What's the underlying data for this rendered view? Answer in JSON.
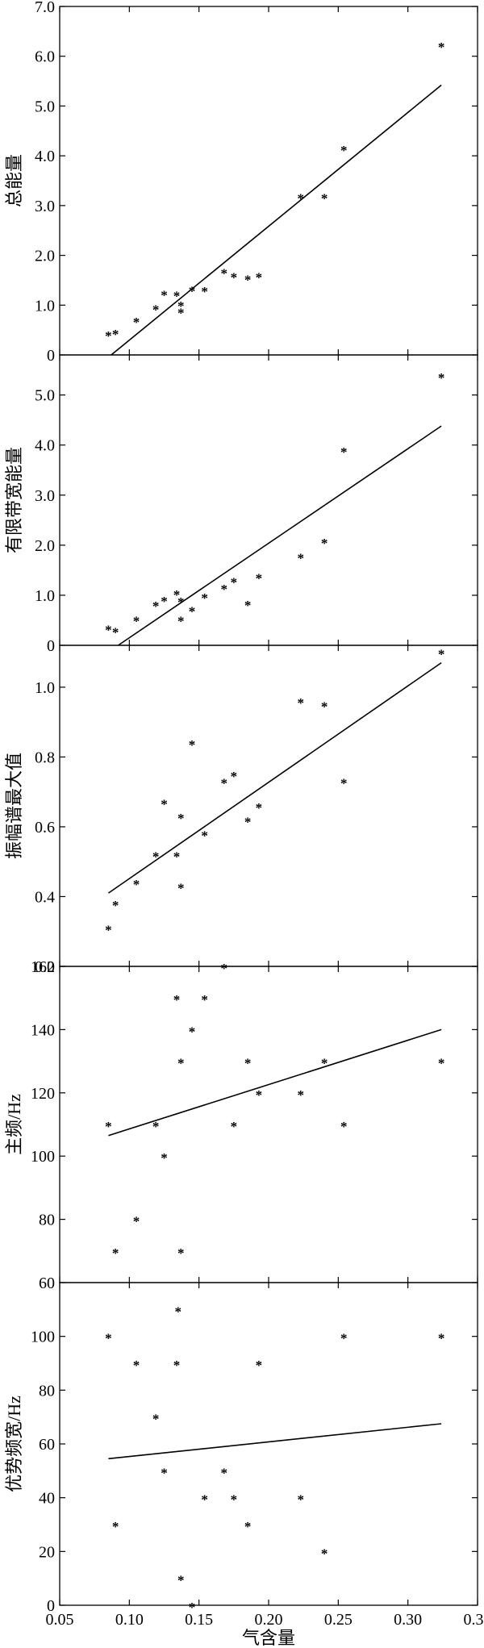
{
  "chart_data": [
    {
      "type": "scatter",
      "ylabel": "总能量",
      "ylim": [
        0,
        7
      ],
      "yticks": [
        "0",
        "1.0",
        "2.0",
        "3.0",
        "4.0",
        "5.0",
        "6.0",
        "7.0"
      ],
      "ytick_values": [
        0,
        1,
        2,
        3,
        4,
        5,
        6,
        7
      ],
      "x": [
        0.085,
        0.09,
        0.105,
        0.119,
        0.125,
        0.134,
        0.137,
        0.137,
        0.145,
        0.154,
        0.168,
        0.175,
        0.185,
        0.193,
        0.223,
        0.24,
        0.254,
        0.324
      ],
      "y": [
        0.42,
        0.45,
        0.7,
        0.95,
        1.24,
        1.22,
        1.02,
        0.88,
        1.32,
        1.31,
        1.68,
        1.6,
        1.55,
        1.6,
        3.18,
        3.18,
        4.15,
        6.22
      ],
      "fit_line": {
        "x": [
          0.087,
          0.324
        ],
        "y": [
          0,
          5.42
        ]
      }
    },
    {
      "type": "scatter",
      "ylabel": "有限带宽能量",
      "ylim": [
        0,
        5.8
      ],
      "yticks": [
        "0",
        "1.0",
        "2.0",
        "3.0",
        "4.0",
        "5.0"
      ],
      "ytick_values": [
        0,
        1,
        2,
        3,
        4,
        5
      ],
      "x": [
        0.085,
        0.09,
        0.105,
        0.119,
        0.125,
        0.134,
        0.137,
        0.137,
        0.145,
        0.154,
        0.168,
        0.175,
        0.185,
        0.193,
        0.223,
        0.24,
        0.254,
        0.324
      ],
      "y": [
        0.35,
        0.3,
        0.52,
        0.82,
        0.92,
        1.05,
        0.9,
        0.52,
        0.72,
        0.98,
        1.16,
        1.3,
        0.84,
        1.38,
        1.78,
        2.08,
        3.9,
        5.38
      ],
      "fit_line": {
        "x": [
          0.092,
          0.324
        ],
        "y": [
          0,
          4.38
        ]
      }
    },
    {
      "type": "scatter",
      "ylabel": "振幅谱最大值",
      "ylim": [
        0.2,
        1.12
      ],
      "yticks": [
        "0.2",
        "0.4",
        "0.6",
        "0.8",
        "1.0"
      ],
      "ytick_values": [
        0.2,
        0.4,
        0.6,
        0.8,
        1.0
      ],
      "x": [
        0.085,
        0.09,
        0.105,
        0.119,
        0.125,
        0.134,
        0.137,
        0.137,
        0.145,
        0.154,
        0.168,
        0.175,
        0.185,
        0.193,
        0.223,
        0.24,
        0.254,
        0.324
      ],
      "y": [
        0.31,
        0.38,
        0.44,
        0.52,
        0.67,
        0.52,
        0.43,
        0.63,
        0.84,
        0.58,
        0.73,
        0.75,
        0.62,
        0.66,
        0.96,
        0.95,
        0.73,
        1.1
      ],
      "fit_line": {
        "x": [
          0.085,
          0.324
        ],
        "y": [
          0.41,
          1.07
        ]
      }
    },
    {
      "type": "scatter",
      "ylabel": "主频/Hz",
      "ylim": [
        60,
        160
      ],
      "yticks": [
        "60",
        "80",
        "100",
        "120",
        "140",
        "160"
      ],
      "ytick_values": [
        60,
        80,
        100,
        120,
        140,
        160
      ],
      "x": [
        0.085,
        0.09,
        0.105,
        0.119,
        0.125,
        0.134,
        0.137,
        0.137,
        0.145,
        0.154,
        0.168,
        0.175,
        0.185,
        0.193,
        0.223,
        0.24,
        0.254,
        0.324
      ],
      "y": [
        110,
        70,
        80,
        110,
        100,
        150,
        130,
        70,
        140,
        150,
        160,
        110,
        130,
        120,
        120,
        130,
        110,
        130
      ],
      "fit_line": {
        "x": [
          0.085,
          0.324
        ],
        "y": [
          106.5,
          140
        ]
      }
    },
    {
      "type": "scatter",
      "ylabel": "优势频宽/Hz",
      "xlabel": "气含量",
      "xlim": [
        0.05,
        0.35
      ],
      "xticks": [
        "0.05",
        "0.10",
        "0.15",
        "0.20",
        "0.25",
        "0.30",
        "0.35"
      ],
      "xtick_values": [
        0.05,
        0.1,
        0.15,
        0.2,
        0.25,
        0.3,
        0.35
      ],
      "ylim": [
        0,
        120
      ],
      "yticks": [
        "0",
        "20",
        "40",
        "60",
        "80",
        "100"
      ],
      "ytick_values": [
        0,
        20,
        40,
        60,
        80,
        100
      ],
      "x": [
        0.085,
        0.09,
        0.105,
        0.119,
        0.125,
        0.134,
        0.135,
        0.137,
        0.145,
        0.154,
        0.168,
        0.175,
        0.185,
        0.193,
        0.223,
        0.24,
        0.254,
        0.324
      ],
      "y": [
        100,
        30,
        90,
        70,
        50,
        90,
        110,
        10,
        0,
        40,
        50,
        40,
        30,
        90,
        40,
        20,
        100,
        100
      ],
      "fit_line": {
        "x": [
          0.085,
          0.324
        ],
        "y": [
          54.5,
          67.5
        ]
      }
    }
  ]
}
